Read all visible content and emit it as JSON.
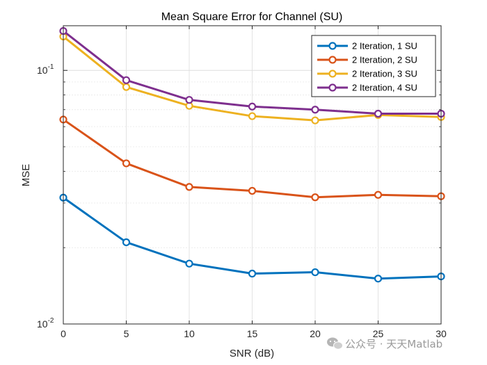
{
  "chart_data": {
    "type": "line",
    "title": "Mean Square Error for Channel (SU)",
    "xlabel": "SNR (dB)",
    "ylabel": "MSE",
    "yscale": "log",
    "xlim": [
      0,
      30
    ],
    "ylim": [
      0.01,
      0.15
    ],
    "xticks": [
      0,
      5,
      10,
      15,
      20,
      25,
      30
    ],
    "xtick_labels": [
      "0",
      "5",
      "10",
      "15",
      "20",
      "25",
      "30"
    ],
    "yticks": [
      {
        "value": 0.01,
        "base": "10",
        "exp": "-2"
      },
      {
        "value": 0.1,
        "base": "10",
        "exp": "-1"
      }
    ],
    "grid": true,
    "legend_position": "top-right",
    "x": [
      0,
      5,
      10,
      15,
      20,
      25,
      30
    ],
    "series": [
      {
        "name": "2 Iteration, 1 SU",
        "color": "#0072BD",
        "values": [
          0.0315,
          0.021,
          0.0173,
          0.0158,
          0.016,
          0.0151,
          0.0154
        ]
      },
      {
        "name": "2 Iteration, 2 SU",
        "color": "#D95319",
        "values": [
          0.064,
          0.043,
          0.0347,
          0.0335,
          0.0316,
          0.0323,
          0.0319
        ]
      },
      {
        "name": "2 Iteration, 3 SU",
        "color": "#EDB120",
        "values": [
          0.136,
          0.086,
          0.0725,
          0.066,
          0.0635,
          0.0667,
          0.0655
        ]
      },
      {
        "name": "2 Iteration, 4 SU",
        "color": "#7E2F8E",
        "values": [
          0.143,
          0.0915,
          0.0765,
          0.072,
          0.07,
          0.0675,
          0.0675
        ]
      }
    ]
  },
  "watermark": {
    "icon": "wechat-icon",
    "text": "公众号 · 天天Matlab"
  }
}
